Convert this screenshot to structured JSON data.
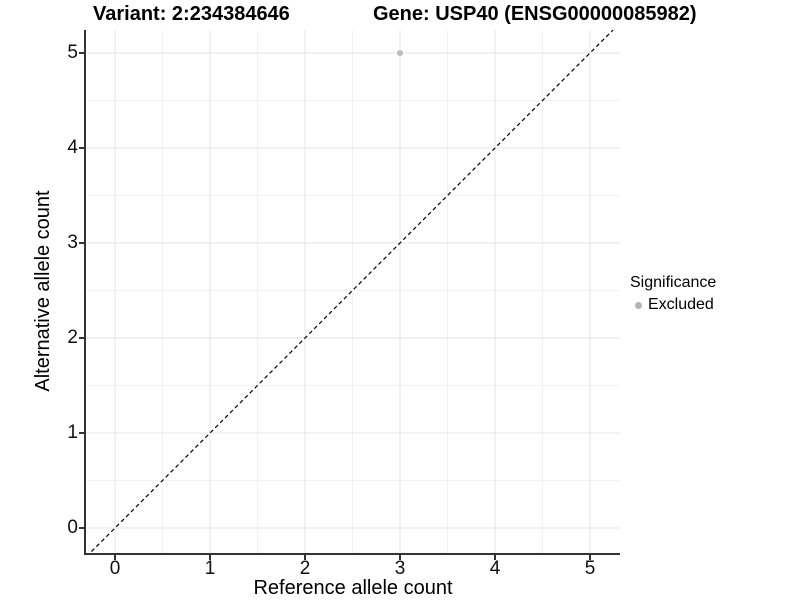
{
  "chart_data": {
    "type": "scatter",
    "title_left": "Variant: 2:234384646",
    "title_right": "Gene: USP40 (ENSG00000085982)",
    "xlabel": "Reference allele count",
    "ylabel": "Alternative allele count",
    "x_ticks": [
      0,
      1,
      2,
      3,
      4,
      5
    ],
    "y_ticks": [
      0,
      1,
      2,
      3,
      4,
      5
    ],
    "xlim": [
      -0.3,
      5.32
    ],
    "ylim": [
      -0.27,
      5.25
    ],
    "grid": {
      "major": true,
      "minor": true
    },
    "series": [
      {
        "name": "Excluded",
        "color": "#bcbcbc",
        "points": [
          [
            3,
            5
          ]
        ]
      }
    ],
    "diagonal_line": {
      "style": "dashed",
      "equation": "y = x",
      "from": [
        -0.3,
        -0.3
      ],
      "to": [
        5.5,
        5.5
      ],
      "color": "#000000"
    },
    "legend": {
      "title": "Significance",
      "position": "right",
      "entries": [
        {
          "label": "Excluded",
          "color": "#b4b4b4"
        }
      ]
    }
  },
  "colors": {
    "background": "#ffffff",
    "grid_major": "#e4e4e4",
    "grid_minor": "#f2f2f2",
    "axis_line": "#333333",
    "text": "#000000",
    "point": "#bcbcbc"
  }
}
